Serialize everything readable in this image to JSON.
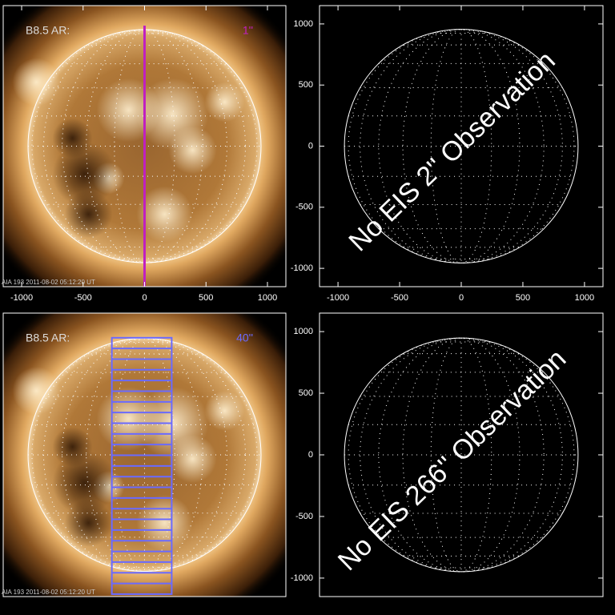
{
  "chart_data": [
    {
      "type": "sun-image",
      "label": "B8.5 AR:",
      "slit_label": "1''",
      "slit_color": "#c020c0",
      "footer": "AIA 193   2011-08-02  05:12:20 UT",
      "xlim": [
        -1150,
        1150
      ],
      "ylim": [
        -1150,
        1150
      ],
      "xticks": [
        -1000,
        -500,
        0,
        500,
        1000
      ],
      "solar_radius": 948,
      "slit_x": 0
    },
    {
      "type": "empty-grid",
      "annotation": "No EIS 2'' Observation",
      "xlim": [
        -1150,
        1150
      ],
      "ylim": [
        -1150,
        1150
      ],
      "xticks": [
        -1000,
        -500,
        0,
        500,
        1000
      ],
      "yticks": [
        -1000,
        -500,
        0,
        500,
        1000
      ],
      "solar_radius": 948
    },
    {
      "type": "sun-image",
      "label": "B8.5 AR:",
      "slit_label": "40''",
      "slit_color": "#6a6aff",
      "footer": "AIA 193   2011-08-02  05:12:20 UT",
      "xlim": [
        -1150,
        1150
      ],
      "ylim": [
        -1150,
        1150
      ],
      "solar_radius": 948,
      "raster_xlim": [
        -266,
        221
      ],
      "raster_ylim": [
        -1130,
        950
      ]
    },
    {
      "type": "empty-grid",
      "annotation": "No EIS 266'' Observation",
      "xlim": [
        -1150,
        1150
      ],
      "ylim": [
        -1150,
        1150
      ],
      "yticks": [
        -1000,
        -500,
        0,
        500,
        1000
      ],
      "solar_radius": 948
    }
  ]
}
